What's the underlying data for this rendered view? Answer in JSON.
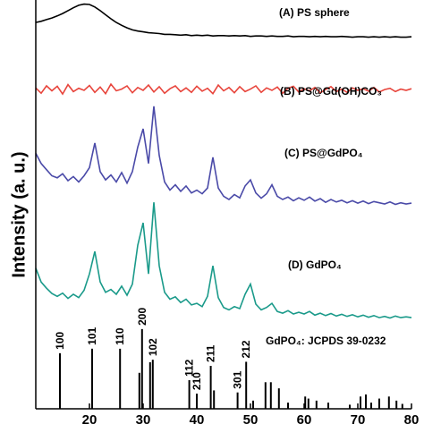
{
  "chart_data": {
    "type": "line",
    "ylabel": "Intensity (a. u.)",
    "x": [
      10,
      11,
      12,
      13,
      14,
      15,
      16,
      17,
      18,
      19,
      20,
      21,
      22,
      23,
      24,
      25,
      26,
      27,
      28,
      29,
      30,
      31,
      32,
      33,
      34,
      35,
      36,
      37,
      38,
      39,
      40,
      41,
      42,
      43,
      44,
      45,
      46,
      47,
      48,
      49,
      50,
      51,
      52,
      53,
      54,
      55,
      56,
      57,
      58,
      59,
      60,
      61,
      62,
      63,
      64,
      65,
      66,
      67,
      68,
      69,
      70,
      71,
      72,
      73,
      74,
      75,
      76,
      77,
      78,
      79,
      80
    ],
    "xlim": [
      10,
      80
    ],
    "xticks": [
      20,
      30,
      40,
      50,
      60,
      70,
      80
    ],
    "ylim": [
      0,
      100
    ],
    "grid": false,
    "series": [
      {
        "name": "(A) PS sphere",
        "color": "#000000",
        "values": [
          94.5,
          94.8,
          95.2,
          95.6,
          96.1,
          96.7,
          97.4,
          98.1,
          98.7,
          99,
          98.9,
          98.3,
          97.4,
          96.4,
          95.4,
          94.5,
          93.8,
          93.2,
          92.7,
          92.4,
          92.2,
          92.0,
          91.9,
          91.8,
          91.6,
          91.6,
          91.5,
          91.4,
          91.5,
          91.3,
          91.4,
          91.3,
          91.4,
          91.2,
          91.3,
          91.3,
          91.2,
          91.3,
          91.2,
          91.3,
          91.1,
          91.2,
          91.2,
          91.1,
          91.2,
          91.1,
          91.1,
          91.2,
          91.0,
          91.1,
          91.1,
          91.0,
          91.1,
          91.0,
          91.1,
          91.0,
          91.0,
          91.1,
          91.0,
          90.9,
          91.0,
          91.0,
          90.9,
          91.0,
          90.9,
          91.0,
          90.9,
          91.0,
          90.9,
          90.9,
          91.0
        ]
      },
      {
        "name": "(B) PS@Gd(OH)CO₃",
        "color": "#e8453c",
        "values": [
          78.5,
          77.2,
          79.0,
          77.8,
          78.9,
          77.0,
          79.3,
          77.6,
          78.4,
          77.9,
          79.1,
          77.4,
          78.7,
          77.1,
          79.4,
          77.8,
          78.2,
          79.0,
          77.3,
          78.6,
          77.9,
          79.2,
          77.5,
          78.8,
          77.2,
          78.3,
          79.0,
          77.6,
          78.5,
          77.4,
          78.9,
          77.7,
          78.4,
          77.1,
          79.2,
          77.8,
          78.6,
          77.3,
          78.8,
          77.6,
          78.2,
          79.0,
          77.4,
          78.5,
          77.9,
          78.7,
          77.2,
          78.4,
          78.9,
          77.5,
          78.3,
          77.8,
          78.6,
          77.3,
          78.1,
          78.8,
          77.6,
          78.2,
          77.4,
          78.5,
          77.9,
          78.3,
          77.7,
          78.6,
          77.5,
          78.1,
          78.4,
          77.6,
          78.2,
          77.9,
          78.3
        ]
      },
      {
        "name": "(C) PS@GdPO₄",
        "color": "#4a4aa8",
        "values": [
          62.5,
          60,
          58.5,
          57,
          56.5,
          57.5,
          55.8,
          56.8,
          55.5,
          57,
          59,
          65,
          58,
          56,
          57.2,
          55.5,
          57.8,
          55.2,
          58,
          64,
          68.5,
          60,
          74,
          62,
          55.5,
          53.5,
          54.8,
          53.2,
          54.5,
          52.8,
          53.5,
          52.6,
          54,
          61.5,
          54,
          52,
          51.2,
          52.4,
          51.6,
          54.5,
          56,
          52.8,
          51.5,
          52.6,
          54.8,
          52,
          51.2,
          51.8,
          50.9,
          51.6,
          51,
          51.8,
          50.8,
          51.4,
          50.5,
          51.2,
          50.6,
          51,
          50.4,
          50.9,
          50.3,
          50.8,
          50.2,
          50.7,
          50.4,
          50.1,
          50.6,
          50,
          50.4,
          50.1,
          50.3
        ]
      },
      {
        "name": "(D) GdPO₄",
        "color": "#1a9a8a",
        "values": [
          34.4,
          31,
          29.5,
          28.2,
          27.5,
          28.3,
          27,
          28,
          27.2,
          29,
          33,
          38.5,
          31,
          28.5,
          29.2,
          28,
          30,
          27.8,
          30.5,
          40,
          45.5,
          33,
          50.5,
          35,
          28.5,
          26.8,
          27.4,
          26,
          26.8,
          25.4,
          25.8,
          25,
          27.5,
          35,
          27.2,
          24.8,
          24.2,
          25,
          24.5,
          28,
          30.5,
          25.6,
          24.2,
          24.8,
          25.8,
          23.8,
          23.4,
          24,
          23.2,
          23.6,
          23.2,
          23.8,
          22.9,
          23.4,
          22.8,
          23.3,
          22.7,
          23.1,
          22.6,
          23,
          22.5,
          22.9,
          22.4,
          22.8,
          22.3,
          22.6,
          22.2,
          22.7,
          22.3,
          22.5,
          22.3
        ]
      }
    ],
    "reference": {
      "name": "GdPO₄: JCPDS 39-0232",
      "color": "#000000",
      "peaks": [
        {
          "x": 14.5,
          "value": 13.6,
          "label": "100"
        },
        {
          "x": 20.5,
          "value": 14.7,
          "label": "101"
        },
        {
          "x": 25.7,
          "value": 14.7,
          "label": "110"
        },
        {
          "x": 29.3,
          "value": 8.8
        },
        {
          "x": 29.8,
          "value": 19.5,
          "label": "200"
        },
        {
          "x": 31.3,
          "value": 11.4
        },
        {
          "x": 31.8,
          "value": 12,
          "label": "102"
        },
        {
          "x": 38.6,
          "value": 7,
          "label": "112"
        },
        {
          "x": 40,
          "value": 3.7,
          "label": "210"
        },
        {
          "x": 42.6,
          "value": 10.5,
          "label": "211"
        },
        {
          "x": 43.2,
          "value": 4.5
        },
        {
          "x": 47.6,
          "value": 4,
          "label": "301"
        },
        {
          "x": 49.2,
          "value": 11.5,
          "label": "212"
        },
        {
          "x": 50.5,
          "value": 2
        },
        {
          "x": 52.8,
          "value": 6.5
        },
        {
          "x": 53.8,
          "value": 6.5
        },
        {
          "x": 55.3,
          "value": 5
        },
        {
          "x": 57,
          "value": 1.5
        },
        {
          "x": 60.2,
          "value": 3
        },
        {
          "x": 60.8,
          "value": 2.5
        },
        {
          "x": 62.3,
          "value": 2
        },
        {
          "x": 64.5,
          "value": 1.5
        },
        {
          "x": 68.5,
          "value": 1
        },
        {
          "x": 70.5,
          "value": 3
        },
        {
          "x": 71.5,
          "value": 3.5
        },
        {
          "x": 72.5,
          "value": 1.5
        },
        {
          "x": 74,
          "value": 2.5
        },
        {
          "x": 75.8,
          "value": 3
        },
        {
          "x": 77.2,
          "value": 2
        },
        {
          "x": 78.3,
          "value": 1.2
        }
      ]
    }
  }
}
